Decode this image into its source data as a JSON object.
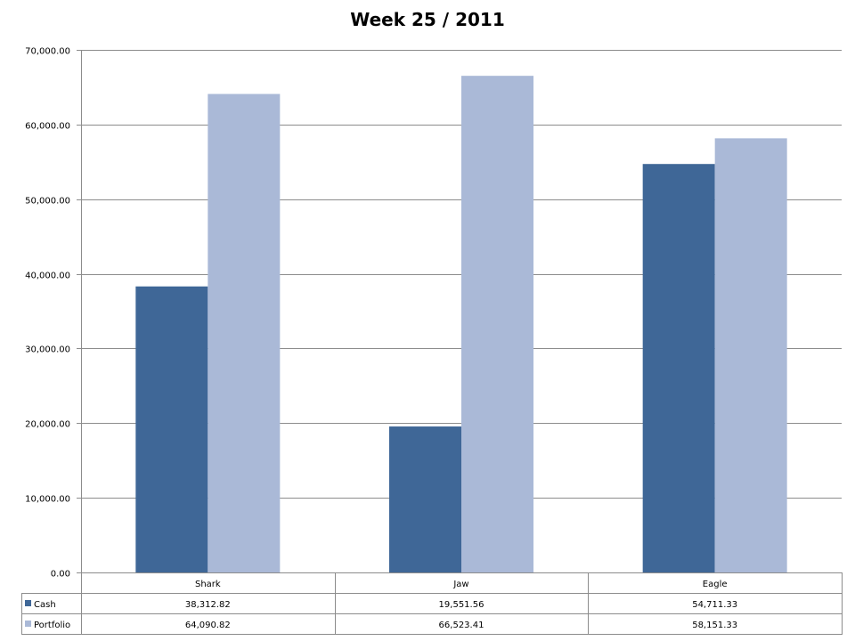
{
  "chart_data": {
    "type": "bar",
    "title": "Week 25 / 2011",
    "categories": [
      "Shark",
      "Jaw",
      "Eagle"
    ],
    "series": [
      {
        "name": "Cash",
        "color": "#3f6797",
        "values": [
          38312.82,
          19551.56,
          54711.33
        ],
        "labels": [
          "38,312.82",
          "19,551.56",
          "54,711.33"
        ]
      },
      {
        "name": "Portfolio",
        "color": "#aab9d7",
        "values": [
          64090.82,
          66523.41,
          58151.33
        ],
        "labels": [
          "64,090.82",
          "66,523.41",
          "58,151.33"
        ]
      }
    ],
    "ylim": [
      0,
      70000
    ],
    "yticks": [
      0,
      10000,
      20000,
      30000,
      40000,
      50000,
      60000,
      70000
    ],
    "ytick_labels": [
      "0.00",
      "10,000.00",
      "20,000.00",
      "30,000.00",
      "40,000.00",
      "50,000.00",
      "60,000.00",
      "70,000.00"
    ],
    "grid": true,
    "legend": "data-table"
  }
}
